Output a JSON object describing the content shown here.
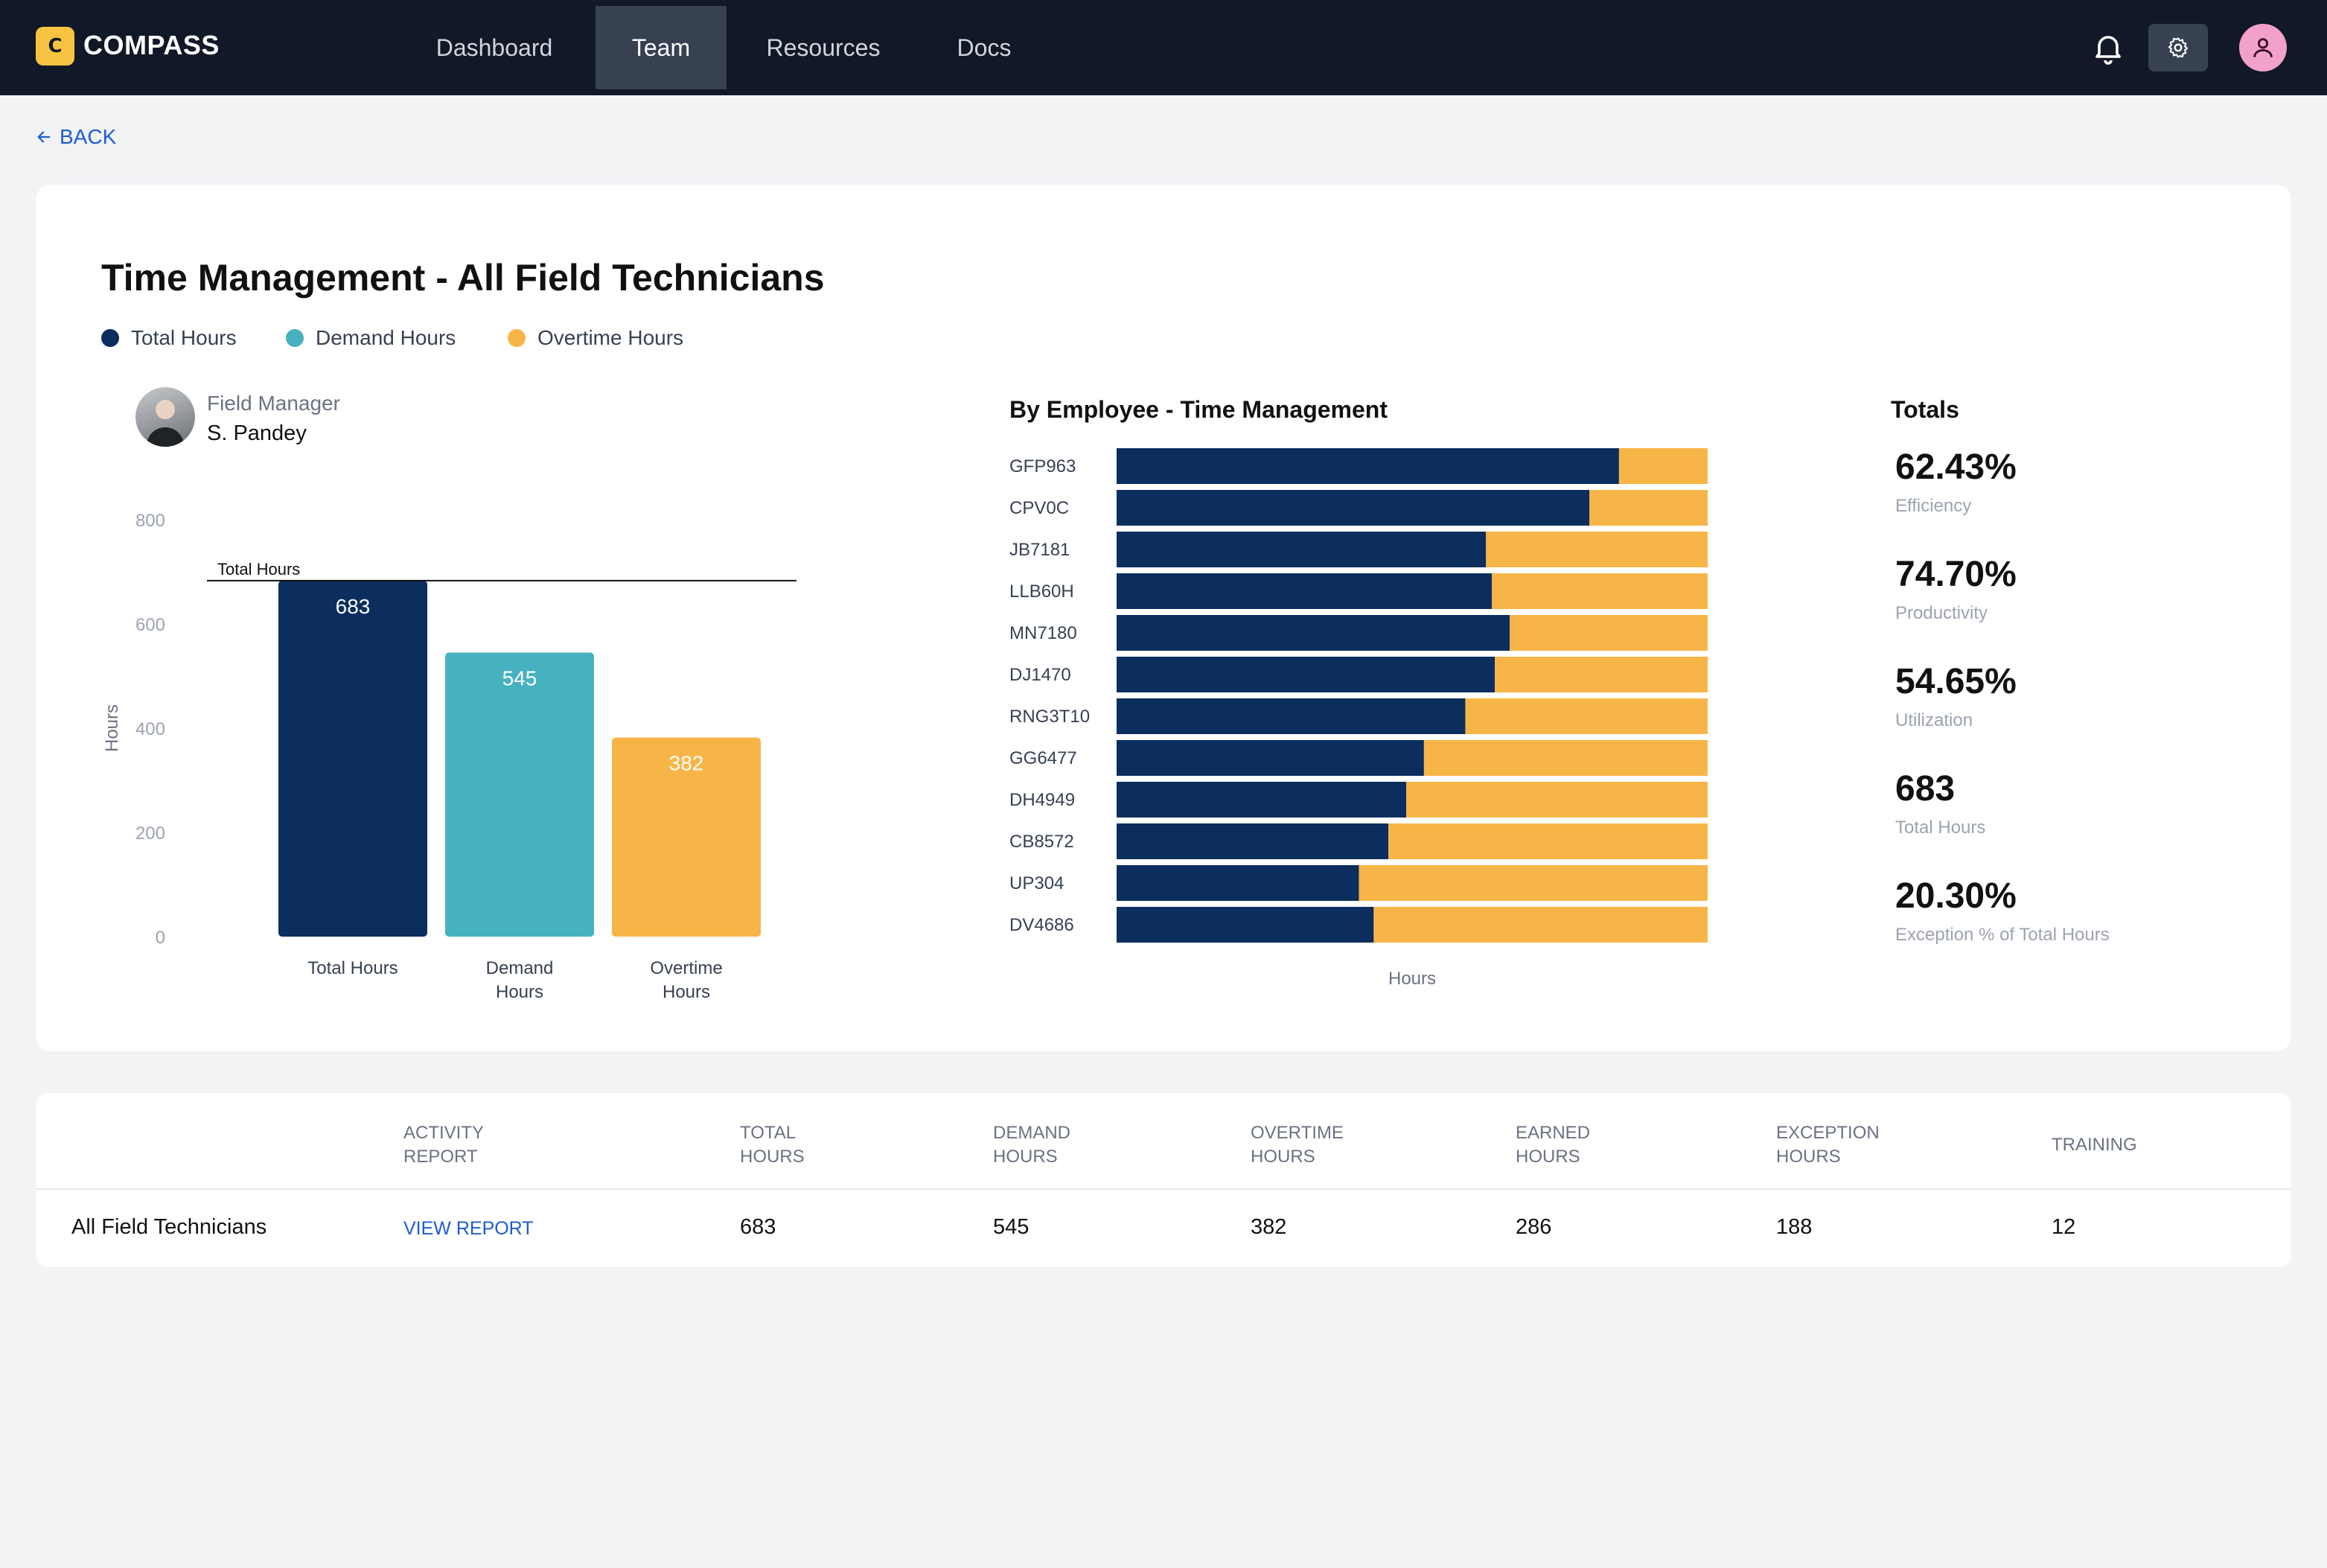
{
  "app": {
    "brand": "COMPASS",
    "logo_letter": "C"
  },
  "nav": {
    "items": [
      {
        "label": "Dashboard"
      },
      {
        "label": "Team"
      },
      {
        "label": "Resources"
      },
      {
        "label": "Docs"
      }
    ],
    "active": "Team"
  },
  "icons": {
    "bell": "bell-icon",
    "settings": "gear-icon",
    "profile": "user-icon",
    "back": "arrow-left-icon"
  },
  "back_label": "BACK",
  "page": {
    "title": "Time Management - All Field Technicians"
  },
  "legend": [
    {
      "label": "Total Hours",
      "color": "#0b2e5e"
    },
    {
      "label": "Demand Hours",
      "color": "#47b2bf"
    },
    {
      "label": "Overtime Hours",
      "color": "#f8b547"
    }
  ],
  "manager": {
    "label": "Field Manager",
    "name": "S. Pandey"
  },
  "chart_data": [
    {
      "type": "bar",
      "ylabel": "Hours",
      "ylim": [
        0,
        800
      ],
      "yticks": [
        0,
        200,
        400,
        600,
        800
      ],
      "categories": [
        "Total Hours",
        "Demand Hours",
        "Overtime Hours"
      ],
      "category_lines": [
        [
          "Total Hours"
        ],
        [
          "Demand",
          "Hours"
        ],
        [
          "Overtime",
          "Hours"
        ]
      ],
      "values": [
        683,
        545,
        382
      ],
      "colors": [
        "#0b2e5e",
        "#47b2bf",
        "#f8b547"
      ],
      "reference_line": {
        "label": "Total Hours",
        "value": 683
      }
    },
    {
      "type": "bar",
      "orientation": "horizontal",
      "stacked": true,
      "title": "By Employee - Time Management",
      "xlabel": "Hours",
      "categories": [
        "GFP963",
        "CPV0C",
        "JB7181",
        "LLB60H",
        "MN7180",
        "DJ1470",
        "RNG3T10",
        "GG6477",
        "DH4949",
        "CB8572",
        "UP304",
        "DV4686"
      ],
      "series": [
        {
          "color": "#0b2e5e",
          "values": [
            85,
            80,
            62.5,
            63.5,
            66.5,
            64,
            59,
            52,
            49,
            46,
            41,
            43.5
          ]
        },
        {
          "color": "#f8b547",
          "values": [
            15,
            20,
            37.5,
            36.5,
            33.5,
            36,
            41,
            48,
            51,
            54,
            59,
            56.5
          ]
        }
      ]
    }
  ],
  "totals": {
    "heading": "Totals",
    "metrics": [
      {
        "value": "62.43%",
        "label": "Efficiency"
      },
      {
        "value": "74.70%",
        "label": "Productivity"
      },
      {
        "value": "54.65%",
        "label": "Utilization"
      },
      {
        "value": "683",
        "label": "Total Hours"
      },
      {
        "value": "20.30%",
        "label": "Exception % of Total Hours"
      }
    ]
  },
  "table": {
    "headers": [
      {
        "line1": "ACTIVITY",
        "line2": "REPORT"
      },
      {
        "line1": "TOTAL",
        "line2": "HOURS"
      },
      {
        "line1": "DEMAND",
        "line2": "HOURS"
      },
      {
        "line1": "OVERTIME",
        "line2": "HOURS"
      },
      {
        "line1": "EARNED",
        "line2": "HOURS"
      },
      {
        "line1": "EXCEPTION",
        "line2": "HOURS"
      },
      {
        "line1": "TRAINING",
        "line2": ""
      }
    ],
    "row": {
      "name": "All Field Technicians",
      "link": "VIEW REPORT",
      "total": "683",
      "demand": "545",
      "overtime": "382",
      "earned": "286",
      "exception": "188",
      "training": "12"
    }
  }
}
